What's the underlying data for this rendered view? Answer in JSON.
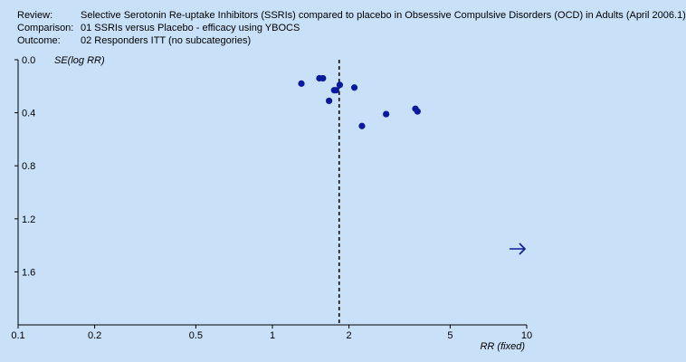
{
  "header": {
    "rows": [
      {
        "label": "Review:",
        "value": "Selective Serotonin Re-uptake Inhibitors (SSRIs) compared to placebo in Obsessive Compulsive Disorders (OCD) in Adults (April 2006.1)"
      },
      {
        "label": "Comparison:",
        "value": "01 SSRIs versus Placebo - efficacy using YBOCS"
      },
      {
        "label": "Outcome:",
        "value": "02 Responders ITT (no subcategories)"
      }
    ]
  },
  "colors": {
    "background": "#c8e0f8",
    "points": "#0a1a9c",
    "axis": "#000000",
    "arrow": "#0a1a9c"
  },
  "chart_data": {
    "type": "scatter",
    "subtype": "funnel plot",
    "title": "",
    "xlabel": "RR (fixed)",
    "ylabel": "SE(log RR)",
    "x_scale": "log",
    "xlim": [
      0.1,
      10
    ],
    "ylim": [
      0.0,
      2.0
    ],
    "y_inverted": true,
    "x_ticks": [
      "0.1",
      "0.2",
      "0.5",
      "1",
      "2",
      "5",
      "10"
    ],
    "y_ticks": [
      "0.0",
      "0.4",
      "0.8",
      "1.2",
      "1.6"
    ],
    "grid": false,
    "legend": "none",
    "pooled_estimate": 1.83,
    "pooled_line_style": "dashed",
    "points": [
      {
        "x": 1.3,
        "y": 0.18
      },
      {
        "x": 1.53,
        "y": 0.14
      },
      {
        "x": 1.58,
        "y": 0.14
      },
      {
        "x": 1.67,
        "y": 0.31
      },
      {
        "x": 1.75,
        "y": 0.23
      },
      {
        "x": 1.78,
        "y": 0.23
      },
      {
        "x": 1.84,
        "y": 0.19
      },
      {
        "x": 2.1,
        "y": 0.21
      },
      {
        "x": 2.25,
        "y": 0.5
      },
      {
        "x": 2.8,
        "y": 0.41
      },
      {
        "x": 3.65,
        "y": 0.37
      },
      {
        "x": 3.72,
        "y": 0.39
      }
    ],
    "annotation_arrow": "right"
  }
}
